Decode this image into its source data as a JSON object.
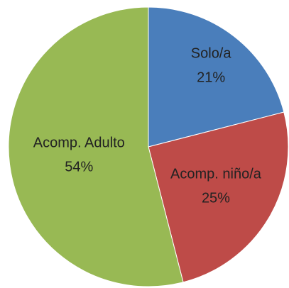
{
  "chart_data": {
    "type": "pie",
    "categories": [
      "Solo/a",
      "Acomp. niño/a",
      "Acomp. Adulto"
    ],
    "values": [
      21,
      25,
      54
    ],
    "value_labels": [
      "21%",
      "25%",
      "54%"
    ],
    "colors": [
      "#4a7ebb",
      "#be4b48",
      "#98b954"
    ]
  }
}
